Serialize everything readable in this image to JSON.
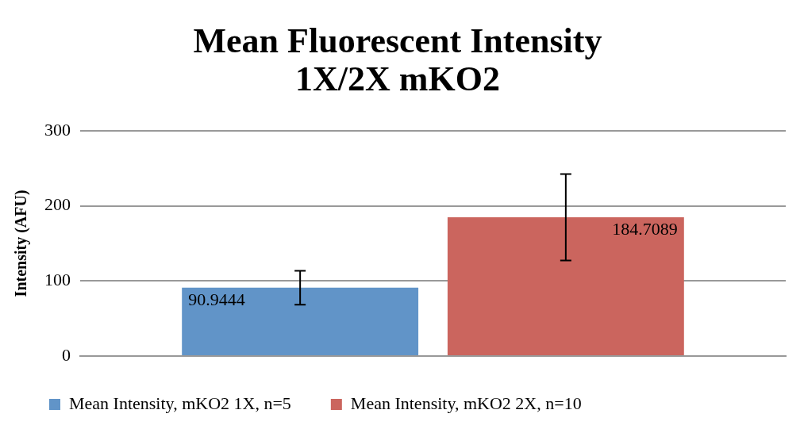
{
  "chart_data": {
    "type": "bar",
    "title": "Mean Fluorescent Intensity\n1X/2X mKO2",
    "ylabel": "Intensity (AFU)",
    "categories": [
      null
    ],
    "series": [
      {
        "name": "Mean Intensity, mKO2 1X, n=5",
        "color": "#6194c8",
        "values": [
          90.9444
        ],
        "errors": [
          22.5
        ]
      },
      {
        "name": "Mean Intensity, mKO2 2X, n=10",
        "color": "#cb655e",
        "values": [
          184.7089
        ],
        "errors": [
          57.5
        ]
      }
    ],
    "ylim": [
      0,
      300
    ],
    "yticks": [
      0,
      100,
      200,
      300
    ],
    "grid": "y",
    "legend": "bottom",
    "data_labels": true
  }
}
